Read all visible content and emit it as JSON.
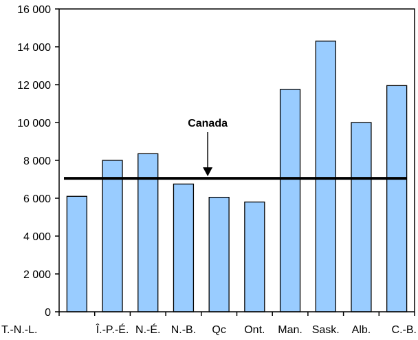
{
  "chart_data": {
    "type": "bar",
    "categories": [
      "T.-N.-L.",
      "Î.-P.-É.",
      "N.-É.",
      "N.-B.",
      "Qc",
      "Ont.",
      "Man.",
      "Sask.",
      "Alb.",
      "C.-B."
    ],
    "values": [
      6100,
      8000,
      8350,
      6750,
      6050,
      5800,
      11750,
      14300,
      10000,
      11950
    ],
    "title": "",
    "xlabel": "",
    "ylabel": "",
    "ylim": [
      0,
      16000
    ],
    "yticks": [
      0,
      2000,
      4000,
      6000,
      8000,
      10000,
      12000,
      14000,
      16000
    ],
    "ytick_labels": [
      "0",
      "2 000",
      "4 000",
      "6 000",
      "8 000",
      "10 000",
      "12 000",
      "14 000",
      "16 000"
    ],
    "grid": false,
    "reference_line": {
      "label": "Canada",
      "value": 7050
    },
    "colors": {
      "bar_fill": "#99CCFF",
      "bar_stroke": "#000000",
      "reference_line": "#000000"
    }
  }
}
